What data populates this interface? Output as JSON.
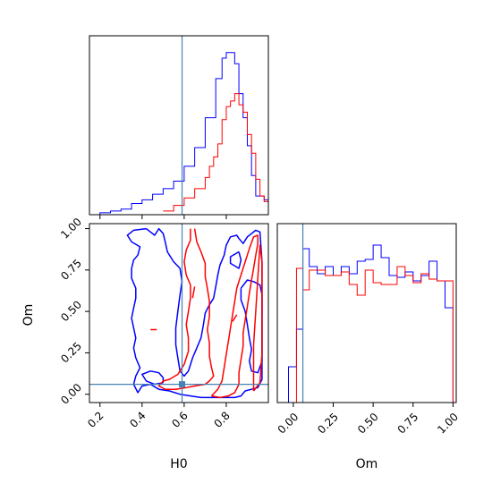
{
  "chart_data": [
    {
      "type": "histogram",
      "panel": "H0 marginal",
      "xlim": [
        0.15,
        1.0
      ],
      "truth": 0.59,
      "colors": {
        "blue": "#0000ff",
        "red": "#ff0000",
        "truth": "#4682b4"
      },
      "series": [
        {
          "color": "blue",
          "bin_edges": [
            0.15,
            0.2,
            0.25,
            0.3,
            0.35,
            0.4,
            0.45,
            0.5,
            0.55,
            0.6,
            0.65,
            0.7,
            0.75,
            0.78,
            0.8,
            0.82,
            0.84,
            0.86,
            0.88,
            0.9,
            0.92,
            0.94,
            0.96,
            0.98,
            1.0
          ],
          "counts": [
            0,
            1,
            2,
            3,
            6,
            8,
            11,
            14,
            18,
            26,
            36,
            52,
            73,
            84,
            87,
            87,
            81,
            65,
            52,
            37,
            21,
            10,
            10,
            8
          ]
        },
        {
          "color": "red",
          "bin_edges": [
            0.5,
            0.55,
            0.6,
            0.65,
            0.7,
            0.72,
            0.74,
            0.76,
            0.78,
            0.8,
            0.82,
            0.84,
            0.86,
            0.88,
            0.9,
            0.92,
            0.94,
            0.96,
            0.98,
            1.0
          ],
          "counts": [
            2,
            5,
            9,
            14,
            20,
            26,
            31,
            38,
            51,
            58,
            61,
            65,
            59,
            55,
            43,
            33,
            19,
            10,
            7
          ]
        }
      ]
    },
    {
      "type": "contour",
      "panel": "H0 vs Om",
      "xlabel": "H0",
      "ylabel": "Om",
      "xlim": [
        0.15,
        1.0
      ],
      "ylim": [
        -0.05,
        1.03
      ],
      "xticks": [
        "0.2",
        "0.4",
        "0.6",
        "0.8"
      ],
      "yticks": [
        "0.00",
        "0.25",
        "0.50",
        "0.75",
        "1.00"
      ],
      "truth": {
        "x": 0.59,
        "y": 0.06
      },
      "series": [
        {
          "color": "blue",
          "contours": [
            [
              [
                0.42,
                1.0
              ],
              [
                0.36,
                0.99
              ],
              [
                0.33,
                0.96
              ],
              [
                0.35,
                0.92
              ],
              [
                0.39,
                0.89
              ],
              [
                0.38,
                0.84
              ],
              [
                0.36,
                0.81
              ],
              [
                0.35,
                0.76
              ],
              [
                0.35,
                0.7
              ],
              [
                0.37,
                0.64
              ],
              [
                0.37,
                0.58
              ],
              [
                0.36,
                0.52
              ],
              [
                0.35,
                0.46
              ],
              [
                0.36,
                0.4
              ],
              [
                0.37,
                0.34
              ],
              [
                0.36,
                0.28
              ],
              [
                0.37,
                0.22
              ],
              [
                0.39,
                0.16
              ],
              [
                0.37,
                0.11
              ],
              [
                0.36,
                0.06
              ],
              [
                0.38,
                0.01
              ],
              [
                0.4,
                0.05
              ],
              [
                0.44,
                0.06
              ],
              [
                0.48,
                0.03
              ],
              [
                0.53,
                0.02
              ],
              [
                0.58,
                0.0
              ],
              [
                0.63,
                -0.01
              ],
              [
                0.68,
                -0.02
              ],
              [
                0.74,
                -0.02
              ],
              [
                0.79,
                -0.02
              ],
              [
                0.84,
                -0.02
              ],
              [
                0.87,
                -0.01
              ],
              [
                0.89,
                0.02
              ],
              [
                0.92,
                0.03
              ],
              [
                0.95,
                0.04
              ],
              [
                0.97,
                0.09
              ],
              [
                0.97,
                0.3
              ],
              [
                0.97,
                0.8
              ],
              [
                0.96,
                0.98
              ],
              [
                0.94,
                0.99
              ],
              [
                0.9,
                0.95
              ],
              [
                0.88,
                0.91
              ],
              [
                0.86,
                0.94
              ],
              [
                0.85,
                0.96
              ],
              [
                0.82,
                0.95
              ],
              [
                0.8,
                0.9
              ],
              [
                0.79,
                0.84
              ],
              [
                0.77,
                0.78
              ],
              [
                0.76,
                0.72
              ],
              [
                0.75,
                0.65
              ],
              [
                0.74,
                0.58
              ],
              [
                0.72,
                0.54
              ],
              [
                0.7,
                0.49
              ],
              [
                0.69,
                0.41
              ],
              [
                0.68,
                0.34
              ],
              [
                0.66,
                0.28
              ],
              [
                0.64,
                0.22
              ],
              [
                0.62,
                0.14
              ],
              [
                0.6,
                0.11
              ],
              [
                0.58,
                0.14
              ],
              [
                0.57,
                0.22
              ],
              [
                0.56,
                0.3
              ],
              [
                0.56,
                0.4
              ],
              [
                0.57,
                0.5
              ],
              [
                0.58,
                0.6
              ],
              [
                0.59,
                0.68
              ],
              [
                0.58,
                0.76
              ],
              [
                0.55,
                0.8
              ],
              [
                0.52,
                0.86
              ],
              [
                0.51,
                0.92
              ],
              [
                0.5,
                0.97
              ],
              [
                0.48,
                1.0
              ],
              [
                0.46,
                0.96
              ],
              [
                0.44,
                0.98
              ],
              [
                0.42,
                1.0
              ]
            ],
            [
              [
                0.86,
                0.86
              ],
              [
                0.82,
                0.83
              ],
              [
                0.82,
                0.79
              ],
              [
                0.86,
                0.76
              ],
              [
                0.87,
                0.81
              ],
              [
                0.86,
                0.86
              ]
            ],
            [
              [
                0.87,
                0.64
              ],
              [
                0.87,
                0.57
              ],
              [
                0.89,
                0.5
              ],
              [
                0.9,
                0.42
              ],
              [
                0.91,
                0.34
              ],
              [
                0.92,
                0.27
              ],
              [
                0.91,
                0.2
              ],
              [
                0.92,
                0.14
              ],
              [
                0.95,
                0.13
              ],
              [
                0.97,
                0.2
              ],
              [
                0.97,
                0.4
              ],
              [
                0.97,
                0.6
              ],
              [
                0.96,
                0.66
              ],
              [
                0.93,
                0.68
              ],
              [
                0.9,
                0.69
              ],
              [
                0.87,
                0.64
              ]
            ],
            [
              [
                0.5,
                0.07
              ],
              [
                0.46,
                0.06
              ],
              [
                0.42,
                0.08
              ],
              [
                0.4,
                0.12
              ],
              [
                0.44,
                0.14
              ],
              [
                0.48,
                0.13
              ],
              [
                0.5,
                0.1
              ],
              [
                0.5,
                0.07
              ]
            ]
          ]
        },
        {
          "color": "red",
          "contours": [
            [
              [
                0.63,
                1.0
              ],
              [
                0.63,
                0.93
              ],
              [
                0.61,
                0.87
              ],
              [
                0.6,
                0.8
              ],
              [
                0.61,
                0.72
              ],
              [
                0.63,
                0.66
              ],
              [
                0.63,
                0.58
              ],
              [
                0.62,
                0.5
              ],
              [
                0.61,
                0.42
              ],
              [
                0.62,
                0.34
              ],
              [
                0.62,
                0.26
              ],
              [
                0.6,
                0.18
              ],
              [
                0.57,
                0.12
              ],
              [
                0.53,
                0.09
              ],
              [
                0.5,
                0.08
              ],
              [
                0.48,
                0.05
              ],
              [
                0.51,
                0.03
              ],
              [
                0.56,
                0.03
              ],
              [
                0.61,
                0.04
              ],
              [
                0.65,
                0.05
              ],
              [
                0.7,
                0.06
              ],
              [
                0.72,
                0.08
              ],
              [
                0.74,
                0.11
              ],
              [
                0.73,
                0.16
              ],
              [
                0.72,
                0.23
              ],
              [
                0.72,
                0.31
              ],
              [
                0.71,
                0.39
              ],
              [
                0.72,
                0.47
              ],
              [
                0.72,
                0.56
              ],
              [
                0.71,
                0.64
              ],
              [
                0.7,
                0.71
              ],
              [
                0.7,
                0.79
              ],
              [
                0.68,
                0.86
              ],
              [
                0.66,
                0.92
              ],
              [
                0.65,
                1.0
              ]
            ],
            [
              [
                0.73,
                -0.01
              ],
              [
                0.77,
                -0.02
              ],
              [
                0.81,
                -0.01
              ],
              [
                0.84,
                0.01
              ],
              [
                0.86,
                0.06
              ],
              [
                0.86,
                0.13
              ],
              [
                0.87,
                0.21
              ],
              [
                0.88,
                0.29
              ],
              [
                0.88,
                0.37
              ],
              [
                0.89,
                0.45
              ],
              [
                0.9,
                0.53
              ],
              [
                0.91,
                0.61
              ],
              [
                0.92,
                0.69
              ],
              [
                0.93,
                0.76
              ],
              [
                0.94,
                0.84
              ],
              [
                0.95,
                0.91
              ],
              [
                0.95,
                0.96
              ],
              [
                0.93,
                0.95
              ],
              [
                0.91,
                0.88
              ],
              [
                0.89,
                0.8
              ],
              [
                0.87,
                0.72
              ],
              [
                0.85,
                0.64
              ],
              [
                0.84,
                0.56
              ],
              [
                0.83,
                0.48
              ],
              [
                0.82,
                0.4
              ],
              [
                0.81,
                0.32
              ],
              [
                0.8,
                0.24
              ],
              [
                0.79,
                0.16
              ],
              [
                0.78,
                0.08
              ],
              [
                0.76,
                0.03
              ],
              [
                0.73,
                -0.01
              ]
            ],
            [
              [
                0.93,
                0.02
              ],
              [
                0.96,
                0.07
              ],
              [
                0.97,
                0.25
              ],
              [
                0.97,
                0.5
              ],
              [
                0.97,
                0.8
              ],
              [
                0.96,
                0.9
              ],
              [
                0.95,
                0.7
              ],
              [
                0.94,
                0.5
              ],
              [
                0.93,
                0.3
              ],
              [
                0.93,
                0.1
              ],
              [
                0.93,
                0.02
              ]
            ]
          ],
          "open_segments": [
            [
              [
                0.64,
                0.58
              ],
              [
                0.65,
                0.65
              ]
            ],
            [
              [
                0.44,
                0.39
              ],
              [
                0.47,
                0.39
              ]
            ],
            [
              [
                0.83,
                0.44
              ],
              [
                0.85,
                0.48
              ]
            ]
          ]
        }
      ]
    },
    {
      "type": "histogram",
      "panel": "Om marginal",
      "xlabel": "Om",
      "xlim": [
        -0.1,
        1.02
      ],
      "xticks": [
        "0.00",
        "0.25",
        "0.50",
        "0.75",
        "1.00"
      ],
      "truth": 0.06,
      "series": [
        {
          "color": "blue",
          "bin_edges": [
            -0.1,
            -0.03,
            0.02,
            0.06,
            0.1,
            0.15,
            0.2,
            0.25,
            0.3,
            0.35,
            0.4,
            0.45,
            0.5,
            0.55,
            0.6,
            0.65,
            0.7,
            0.75,
            0.8,
            0.85,
            0.9,
            0.95,
            1.0,
            1.02
          ],
          "counts": [
            0,
            20,
            41,
            86,
            76,
            72,
            76,
            71,
            76,
            72,
            79,
            80,
            88,
            81,
            71,
            70,
            73,
            68,
            71,
            79,
            68,
            53,
            0
          ]
        },
        {
          "color": "red",
          "bin_edges": [
            -0.1,
            -0.03,
            0.02,
            0.06,
            0.1,
            0.15,
            0.2,
            0.25,
            0.3,
            0.35,
            0.4,
            0.45,
            0.5,
            0.55,
            0.6,
            0.65,
            0.7,
            0.75,
            0.8,
            0.85,
            0.9,
            0.95,
            1.0,
            1.02
          ],
          "counts": [
            0,
            0,
            75,
            63,
            74,
            74,
            71,
            71,
            73,
            66,
            60,
            74,
            67,
            66,
            66,
            76,
            71,
            67,
            72,
            69,
            68,
            68,
            0
          ]
        }
      ]
    }
  ]
}
